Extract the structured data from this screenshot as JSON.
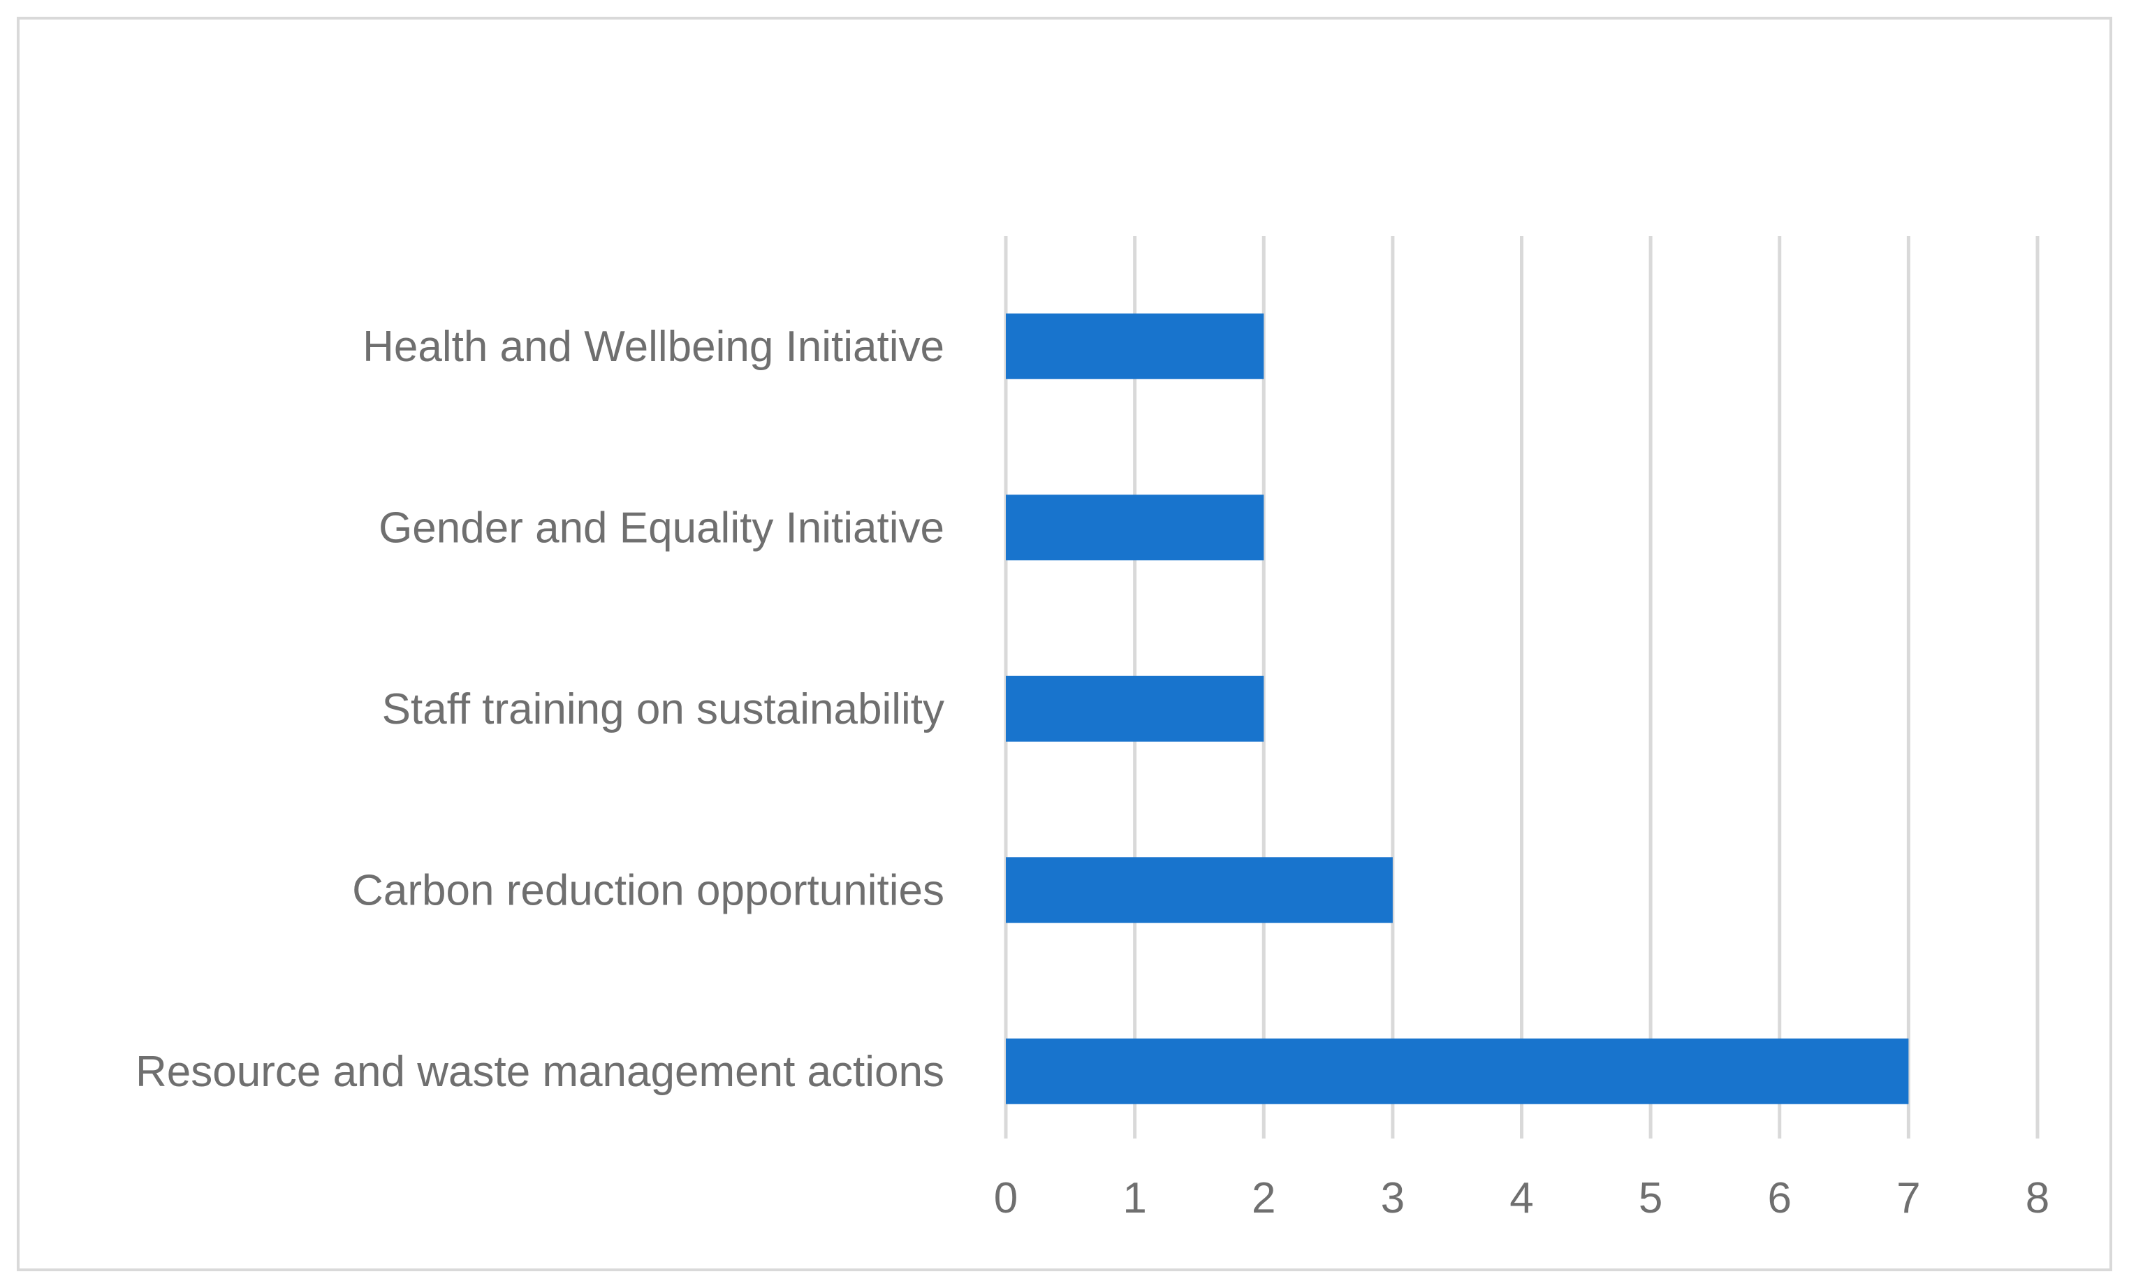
{
  "chart_data": {
    "type": "bar",
    "orientation": "horizontal",
    "title": "",
    "xlabel": "",
    "ylabel": "",
    "categories": [
      "Health and Wellbeing Initiative",
      "Gender and Equality Initiative",
      "Staff training on sustainability",
      "Carbon reduction opportunities",
      "Resource and waste management actions"
    ],
    "values": [
      2,
      2,
      2,
      3,
      7
    ],
    "xlim": [
      0,
      8
    ],
    "x_ticks": [
      "0",
      "1",
      "2",
      "3",
      "4",
      "5",
      "6",
      "7",
      "8"
    ],
    "grid": "vertical",
    "legend": "none",
    "bar_color": "#1874cd",
    "grid_color": "#d9d9d9",
    "label_color": "#6f6f6f"
  }
}
